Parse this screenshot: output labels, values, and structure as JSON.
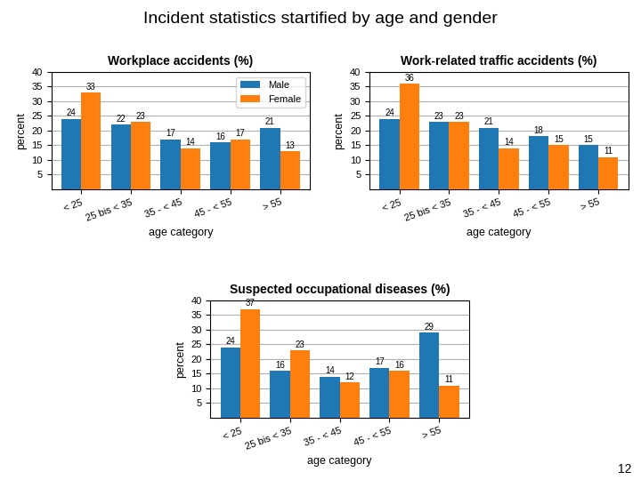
{
  "title": "Incident statistics startified by age and gender",
  "annotations": [
    "12"
  ],
  "chart_data": [
    {
      "type": "bar",
      "title": "Workplace accidents (%)",
      "xlabel": "age category",
      "ylabel": "percent",
      "categories": [
        "< 25",
        "25 bis < 35",
        "35 - < 45",
        "45 - < 55",
        "> 55"
      ],
      "series": [
        {
          "name": "Male",
          "values": [
            24,
            22,
            17,
            16,
            21
          ]
        },
        {
          "name": "Female",
          "values": [
            33,
            23,
            14,
            17,
            13
          ]
        }
      ],
      "ylim": [
        0,
        40
      ],
      "yticks": [
        5,
        10,
        15,
        20,
        25,
        30,
        35,
        40
      ],
      "grid": true,
      "data_labels": true,
      "legend": "upper right"
    },
    {
      "type": "bar",
      "title": "Work-related traffic accidents (%)",
      "xlabel": "age category",
      "ylabel": "percent",
      "categories": [
        "< 25",
        "25 bis < 35",
        "35 - < 45",
        "45 - < 55",
        "> 55"
      ],
      "series": [
        {
          "name": "Male",
          "values": [
            24,
            23,
            21,
            18,
            15
          ]
        },
        {
          "name": "Female",
          "values": [
            36,
            23,
            14,
            15,
            11
          ]
        }
      ],
      "ylim": [
        0,
        40
      ],
      "yticks": [
        5,
        10,
        15,
        20,
        25,
        30,
        35,
        40
      ],
      "grid": true,
      "data_labels": true
    },
    {
      "type": "bar",
      "title": "Suspected occupational diseases (%)",
      "xlabel": "age category",
      "ylabel": "percent",
      "categories": [
        "< 25",
        "25 bis < 35",
        "35 - < 45",
        "45 - < 55",
        "> 55"
      ],
      "series": [
        {
          "name": "Male",
          "values": [
            24,
            16,
            14,
            17,
            29
          ]
        },
        {
          "name": "Female",
          "values": [
            37,
            23,
            12,
            16,
            11
          ]
        }
      ],
      "ylim": [
        0,
        40
      ],
      "yticks": [
        5,
        10,
        15,
        20,
        25,
        30,
        35,
        40
      ],
      "grid": true,
      "data_labels": true
    }
  ]
}
